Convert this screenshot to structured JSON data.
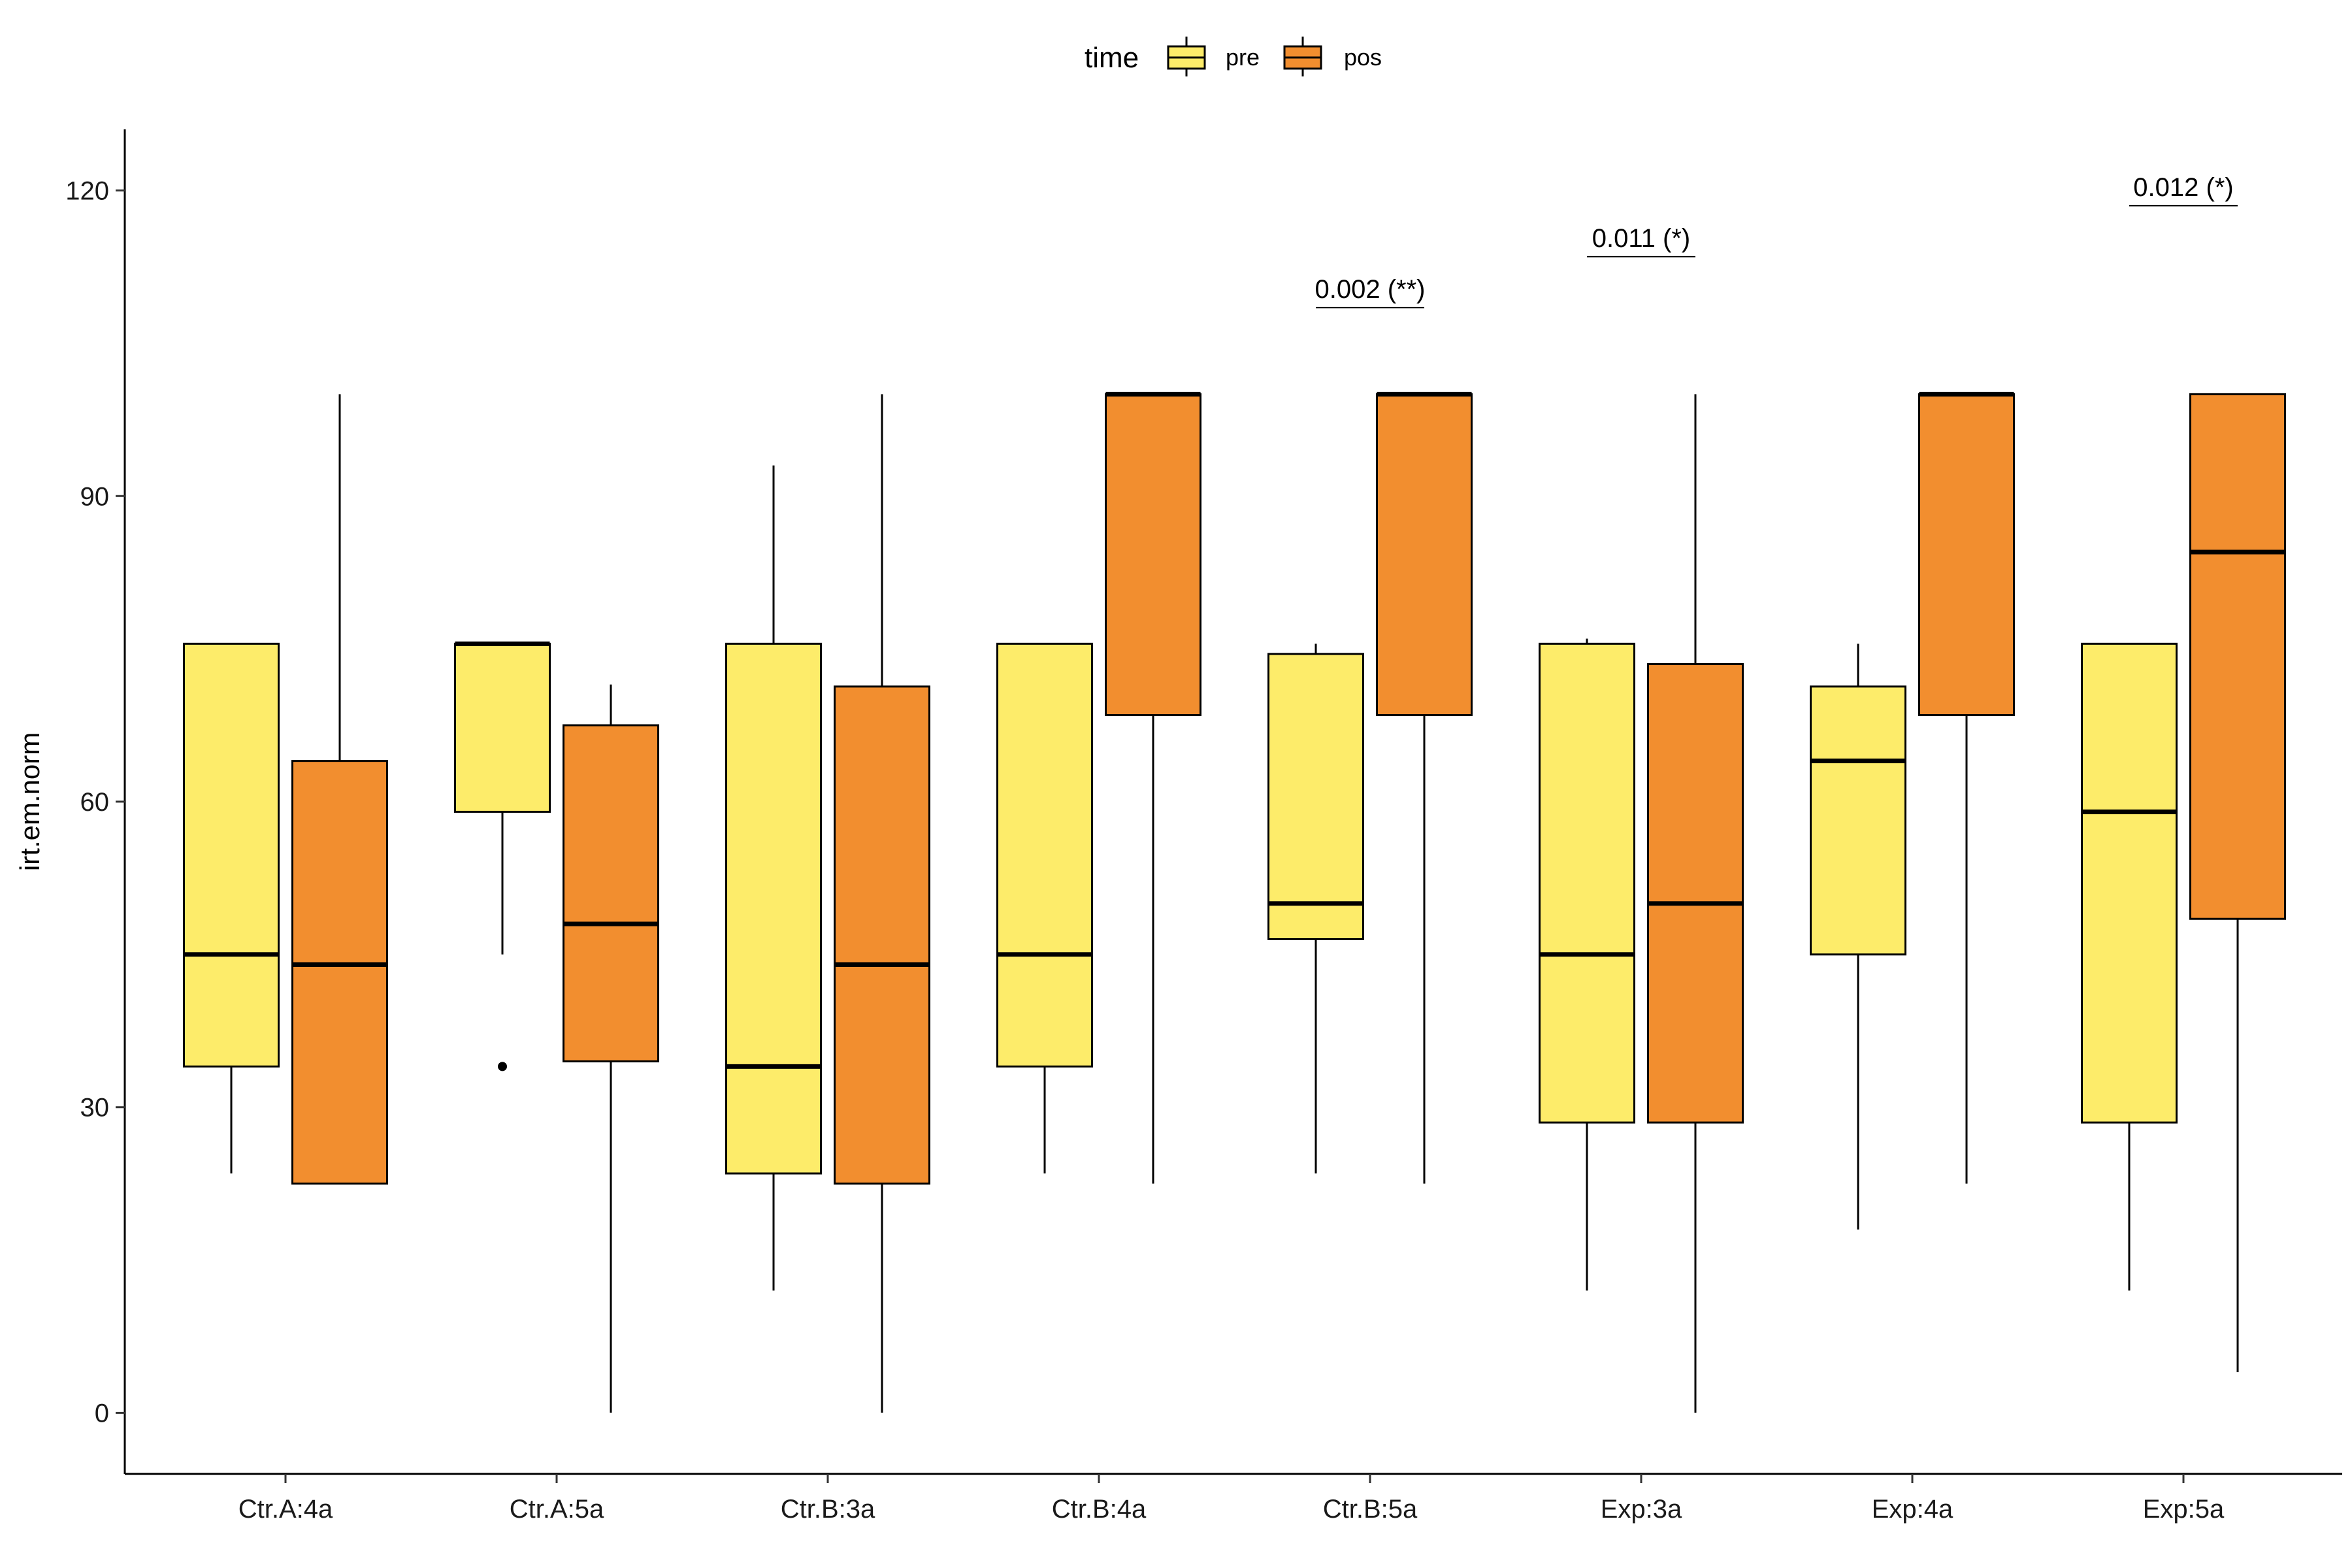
{
  "chart_data": {
    "type": "box",
    "ylabel": "irt.em.norm",
    "xlabel": "",
    "ylim": [
      -6,
      126
    ],
    "yticks": [
      0,
      30,
      60,
      90,
      120
    ],
    "grid": false,
    "legend": {
      "title": "time",
      "position": "top",
      "entries": [
        {
          "key": "pre",
          "label": "pre",
          "color": "#FDEC6A"
        },
        {
          "key": "pos",
          "label": "pos",
          "color": "#F28E2F"
        }
      ]
    },
    "categories": [
      "Ctr.A:4a",
      "Ctr.A:5a",
      "Ctr.B:3a",
      "Ctr.B:4a",
      "Ctr.B:5a",
      "Exp:3a",
      "Exp:4a",
      "Exp:5a"
    ],
    "series": [
      {
        "name": "pre",
        "boxes": [
          {
            "lower": 23.5,
            "q1": 34,
            "median": 45,
            "q3": 75.5,
            "upper": 75.5,
            "outliers": []
          },
          {
            "lower": 45,
            "q1": 59,
            "median": 75.5,
            "q3": 75.5,
            "upper": 75.5,
            "outliers": [
              34
            ]
          },
          {
            "lower": 12,
            "q1": 23.5,
            "median": 34,
            "q3": 75.5,
            "upper": 93,
            "outliers": []
          },
          {
            "lower": 23.5,
            "q1": 34,
            "median": 45,
            "q3": 75.5,
            "upper": 75.5,
            "outliers": []
          },
          {
            "lower": 23.5,
            "q1": 46.5,
            "median": 50,
            "q3": 74.5,
            "upper": 75.5,
            "outliers": []
          },
          {
            "lower": 12,
            "q1": 28.5,
            "median": 45,
            "q3": 75.5,
            "upper": 76,
            "outliers": []
          },
          {
            "lower": 18,
            "q1": 45,
            "median": 64,
            "q3": 71.3,
            "upper": 75.5,
            "outliers": []
          },
          {
            "lower": 12,
            "q1": 28.5,
            "median": 59,
            "q3": 75.5,
            "upper": 75.5,
            "outliers": []
          }
        ]
      },
      {
        "name": "pos",
        "boxes": [
          {
            "lower": 22.5,
            "q1": 22.5,
            "median": 44,
            "q3": 64,
            "upper": 100,
            "outliers": []
          },
          {
            "lower": 0,
            "q1": 34.5,
            "median": 48,
            "q3": 67.5,
            "upper": 71.5,
            "outliers": []
          },
          {
            "lower": 0,
            "q1": 22.5,
            "median": 44,
            "q3": 71.3,
            "upper": 100,
            "outliers": []
          },
          {
            "lower": 22.5,
            "q1": 68.5,
            "median": 100,
            "q3": 100,
            "upper": 100,
            "outliers": []
          },
          {
            "lower": 22.5,
            "q1": 68.5,
            "median": 100,
            "q3": 100,
            "upper": 100,
            "outliers": []
          },
          {
            "lower": 0,
            "q1": 28.5,
            "median": 50,
            "q3": 73.5,
            "upper": 100,
            "outliers": []
          },
          {
            "lower": 22.5,
            "q1": 68.5,
            "median": 100,
            "q3": 100,
            "upper": 100,
            "outliers": []
          },
          {
            "lower": 4,
            "q1": 48.5,
            "median": 84.5,
            "q3": 100,
            "upper": 100,
            "outliers": []
          }
        ]
      }
    ],
    "annotations": [
      {
        "category": "Ctr.B:5a",
        "text": "0.002 (**)",
        "y": 108.5
      },
      {
        "category": "Exp:3a",
        "text": "0.011 (*)",
        "y": 113.5
      },
      {
        "category": "Exp:5a",
        "text": "0.012 (*)",
        "y": 118.5
      }
    ]
  }
}
